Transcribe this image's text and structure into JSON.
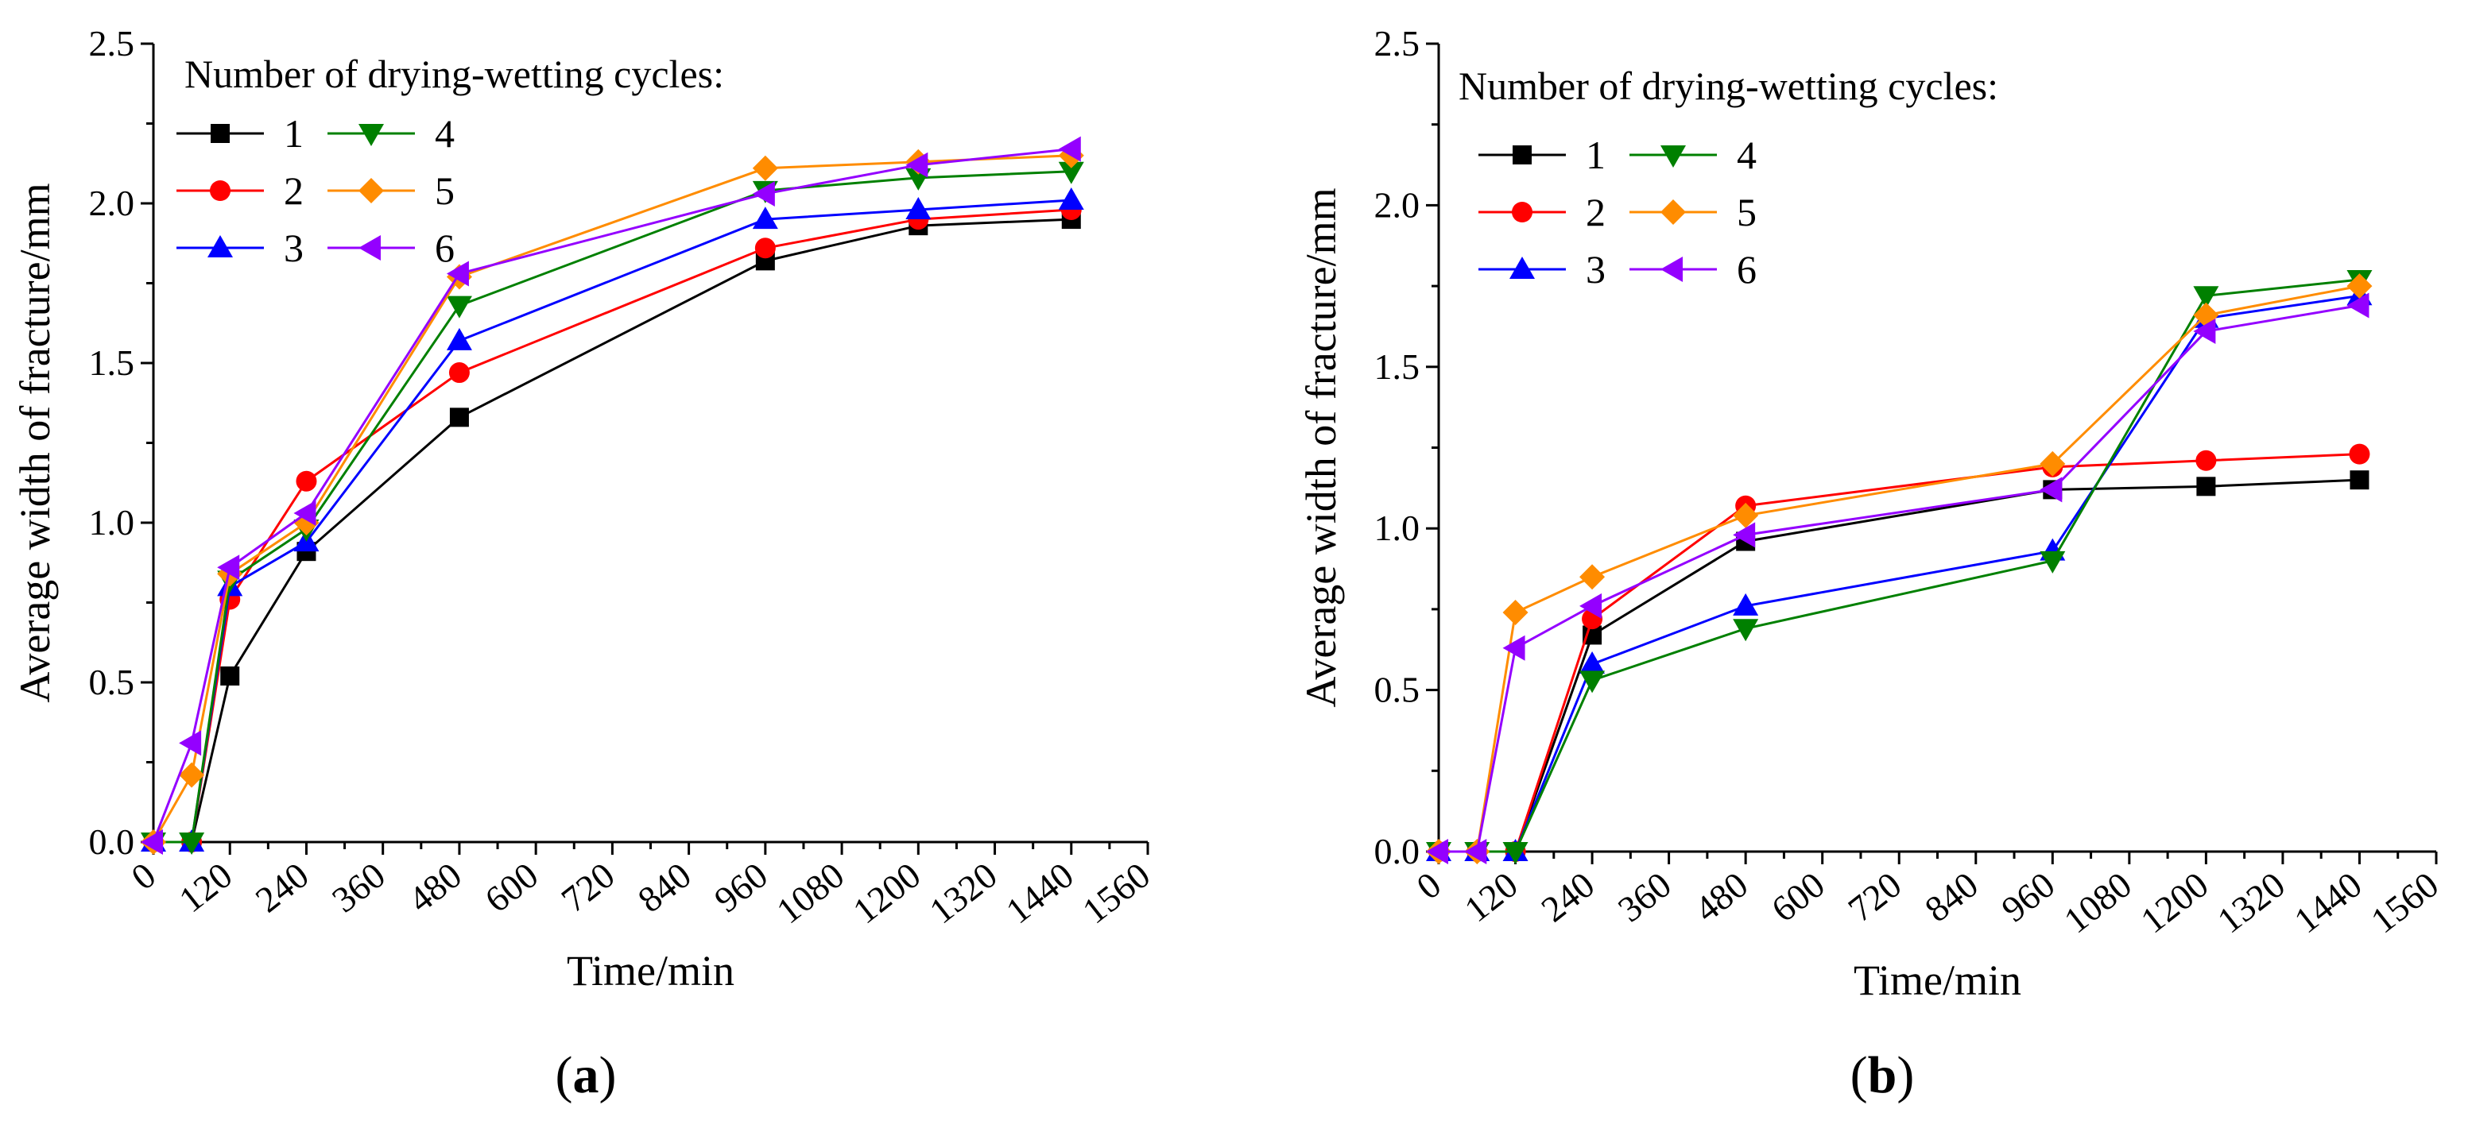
{
  "colors": {
    "1": "#000000",
    "2": "#ff0000",
    "3": "#0000ff",
    "4": "#008000",
    "5": "#ff8c00",
    "6": "#9400ff"
  },
  "chart_data": [
    {
      "type": "line",
      "panel_label": "a",
      "title": "",
      "xlabel": "Time/min",
      "ylabel": "Average width of fracture/mm",
      "xlim": [
        0,
        1560
      ],
      "ylim": [
        0,
        2.5
      ],
      "x_ticks": [
        0,
        120,
        240,
        360,
        480,
        600,
        720,
        840,
        960,
        1080,
        1200,
        1320,
        1440,
        1560
      ],
      "x_tick_labels": [
        "0",
        "120",
        "240",
        "360",
        "480",
        "600",
        "720",
        "840",
        "960",
        "1080",
        "1200",
        "1320",
        "1440",
        "1560"
      ],
      "y_ticks": [
        0,
        0.5,
        1.0,
        1.5,
        2.0,
        2.5
      ],
      "y_tick_labels": [
        "0.0",
        "0.5",
        "1.0",
        "1.5",
        "2.0",
        "2.5"
      ],
      "legend_title": "Number of drying-wetting cycles:",
      "legend_position": "top-left",
      "x": [
        0,
        60,
        120,
        240,
        480,
        960,
        1200,
        1440
      ],
      "series": [
        {
          "name": "1",
          "marker": "square",
          "values": [
            0,
            0,
            0.52,
            0.91,
            1.33,
            1.82,
            1.93,
            1.95
          ]
        },
        {
          "name": "2",
          "marker": "circle",
          "values": [
            0,
            0,
            0.76,
            1.13,
            1.47,
            1.86,
            1.95,
            1.98
          ]
        },
        {
          "name": "3",
          "marker": "triangle-up",
          "values": [
            0,
            0,
            0.8,
            0.94,
            1.57,
            1.95,
            1.98,
            2.01
          ]
        },
        {
          "name": "4",
          "marker": "triangle-down",
          "values": [
            0,
            0,
            0.82,
            0.98,
            1.68,
            2.04,
            2.08,
            2.1
          ]
        },
        {
          "name": "5",
          "marker": "diamond",
          "values": [
            0,
            0.21,
            0.84,
            1.0,
            1.77,
            2.11,
            2.13,
            2.15
          ]
        },
        {
          "name": "6",
          "marker": "triangle-left",
          "values": [
            0,
            0.31,
            0.86,
            1.03,
            1.78,
            2.03,
            2.12,
            2.17
          ]
        }
      ]
    },
    {
      "type": "line",
      "panel_label": "b",
      "title": "",
      "xlabel": "Time/min",
      "ylabel": "Average width of fracture/mm",
      "xlim": [
        0,
        1560
      ],
      "ylim": [
        0,
        2.5
      ],
      "x_ticks": [
        0,
        120,
        240,
        360,
        480,
        600,
        720,
        840,
        960,
        1080,
        1200,
        1320,
        1440,
        1560
      ],
      "x_tick_labels": [
        "0",
        "120",
        "240",
        "360",
        "480",
        "600",
        "720",
        "840",
        "960",
        "1080",
        "1200",
        "1320",
        "1440",
        "1560"
      ],
      "y_ticks": [
        0,
        0.5,
        1.0,
        1.5,
        2.0,
        2.5
      ],
      "y_tick_labels": [
        "0.0",
        "0.5",
        "1.0",
        "1.5",
        "2.0",
        "2.5"
      ],
      "legend_title": "Number of drying-wetting cycles:",
      "legend_position": "top-left",
      "x": [
        0,
        60,
        120,
        240,
        480,
        960,
        1200,
        1440
      ],
      "series": [
        {
          "name": "1",
          "marker": "square",
          "values": [
            0,
            0,
            0,
            0.67,
            0.96,
            1.12,
            1.13,
            1.15
          ]
        },
        {
          "name": "2",
          "marker": "circle",
          "values": [
            0,
            0,
            0,
            0.72,
            1.07,
            1.19,
            1.21,
            1.23
          ]
        },
        {
          "name": "3",
          "marker": "triangle-up",
          "values": [
            0,
            0,
            0,
            0.58,
            0.76,
            0.93,
            1.65,
            1.72
          ]
        },
        {
          "name": "4",
          "marker": "triangle-down",
          "values": [
            0,
            0,
            0,
            0.53,
            0.69,
            0.9,
            1.72,
            1.77
          ]
        },
        {
          "name": "5",
          "marker": "diamond",
          "values": [
            0,
            0,
            0.74,
            0.85,
            1.04,
            1.2,
            1.66,
            1.75
          ]
        },
        {
          "name": "6",
          "marker": "triangle-left",
          "values": [
            0,
            0,
            0.63,
            0.76,
            0.98,
            1.12,
            1.61,
            1.69
          ]
        }
      ]
    }
  ]
}
